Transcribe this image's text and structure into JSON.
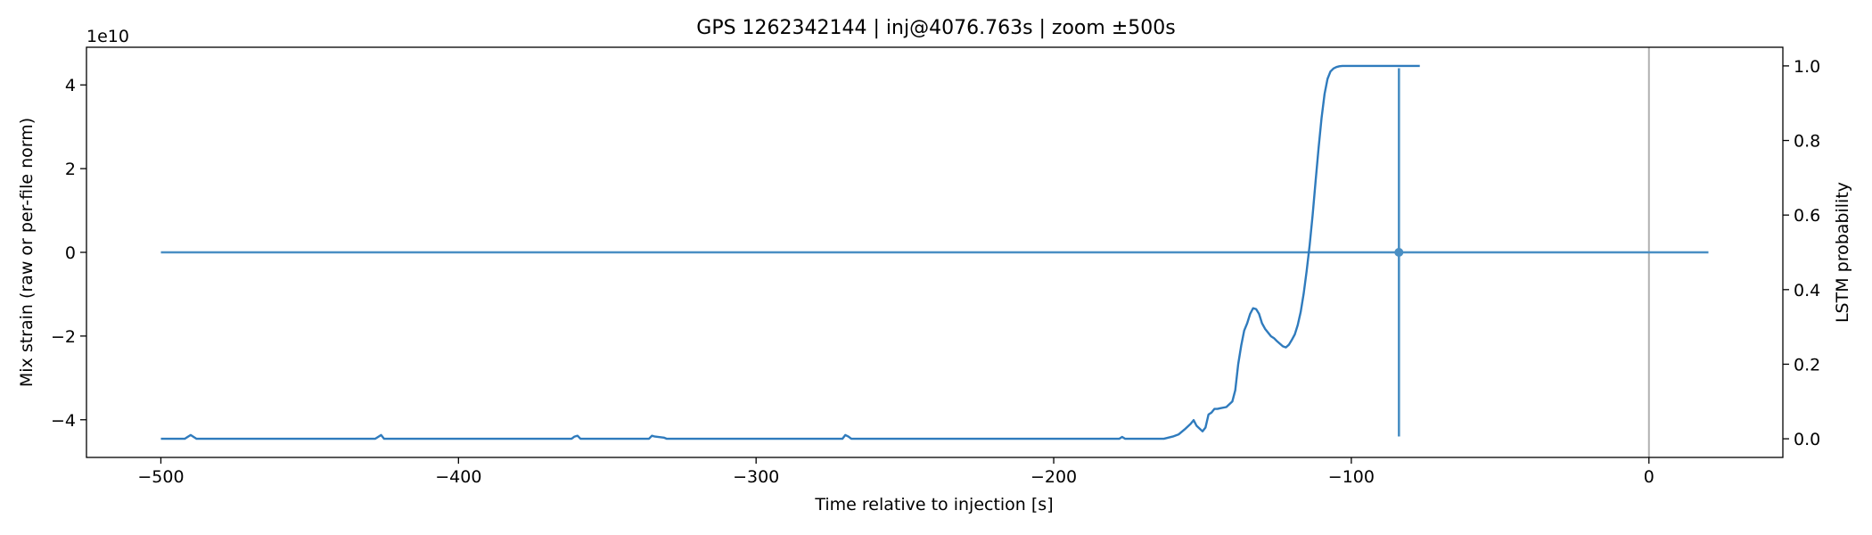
{
  "chart_data": {
    "type": "line",
    "title": "GPS 1262342144 | inj@4076.763s | zoom ±500s",
    "xlabel": "Time relative to injection [s]",
    "ylabel": "Mix strain (raw or per-file norm)",
    "y2label": "LSTM probability",
    "y_offset_text": "1e10",
    "xlim": [
      -525,
      45
    ],
    "ylim": [
      -4.9,
      4.9
    ],
    "y2lim": [
      -0.05,
      1.05
    ],
    "x_ticks": [
      -500,
      -400,
      -300,
      -200,
      -100,
      0
    ],
    "x_tick_labels": [
      "−500",
      "−400",
      "−300",
      "−200",
      "−100",
      "0"
    ],
    "y_ticks": [
      -4,
      -2,
      0,
      2,
      4
    ],
    "y_tick_labels": [
      "−4",
      "−2",
      "0",
      "2",
      "4"
    ],
    "y2_ticks": [
      0.0,
      0.2,
      0.4,
      0.6,
      0.8,
      1.0
    ],
    "y2_tick_labels": [
      "0.0",
      "0.2",
      "0.4",
      "0.6",
      "0.8",
      "1.0"
    ],
    "grid": false,
    "injection_marker_x": 0,
    "colors": {
      "strain": "#4a8fc4",
      "probability": "#2f7bbd",
      "injection_line": "#b0b0b0",
      "spike": "#4a8fc4"
    },
    "series": [
      {
        "axis": "left",
        "x": [
          -500,
          20
        ],
        "values": [
          0,
          0
        ]
      },
      {
        "axis": "right",
        "x": [
          -500,
          -492,
          -491,
          -490,
          -488,
          -428,
          -427,
          -426,
          -425,
          -362,
          -361,
          -360,
          -359,
          -336,
          -335,
          -334,
          -331,
          -330,
          -271,
          -270,
          -269,
          -268,
          -178,
          -177,
          -176,
          -163,
          -160,
          -158,
          -156,
          -154,
          -153,
          -152,
          -150,
          -149,
          -148,
          -147,
          -146,
          -145,
          -144,
          -142,
          -140,
          -139,
          -138,
          -137,
          -136,
          -135,
          -134,
          -133,
          -132,
          -131,
          -130,
          -129,
          -128,
          -127,
          -126,
          -125,
          -124,
          -123,
          -122,
          -121,
          -120,
          -119,
          -118,
          -117,
          -116,
          -115,
          -114,
          -113,
          -112,
          -111,
          -110,
          -109,
          -108,
          -107,
          -106,
          -105,
          -104,
          -103,
          -102,
          -100,
          -95,
          -90,
          -80,
          -77
        ],
        "values": [
          0.0,
          0.0,
          0.005,
          0.01,
          0.0,
          0.0,
          0.005,
          0.01,
          0.0,
          0.0,
          0.006,
          0.008,
          0.0,
          0.0,
          0.008,
          0.006,
          0.003,
          0.0,
          0.0,
          0.01,
          0.006,
          0.0,
          0.0,
          0.005,
          0.0,
          0.0,
          0.006,
          0.012,
          0.025,
          0.04,
          0.05,
          0.035,
          0.02,
          0.03,
          0.065,
          0.07,
          0.08,
          0.08,
          0.082,
          0.085,
          0.1,
          0.13,
          0.2,
          0.25,
          0.29,
          0.31,
          0.335,
          0.35,
          0.348,
          0.335,
          0.31,
          0.295,
          0.285,
          0.275,
          0.27,
          0.262,
          0.255,
          0.248,
          0.245,
          0.252,
          0.265,
          0.28,
          0.305,
          0.34,
          0.39,
          0.45,
          0.52,
          0.6,
          0.69,
          0.78,
          0.86,
          0.925,
          0.965,
          0.985,
          0.993,
          0.997,
          0.999,
          1.0,
          1.0,
          1.0,
          1.0,
          1.0,
          1.0,
          1.0
        ]
      }
    ],
    "spike": {
      "x": -84,
      "top": 4.4,
      "bottom": -4.4
    }
  }
}
